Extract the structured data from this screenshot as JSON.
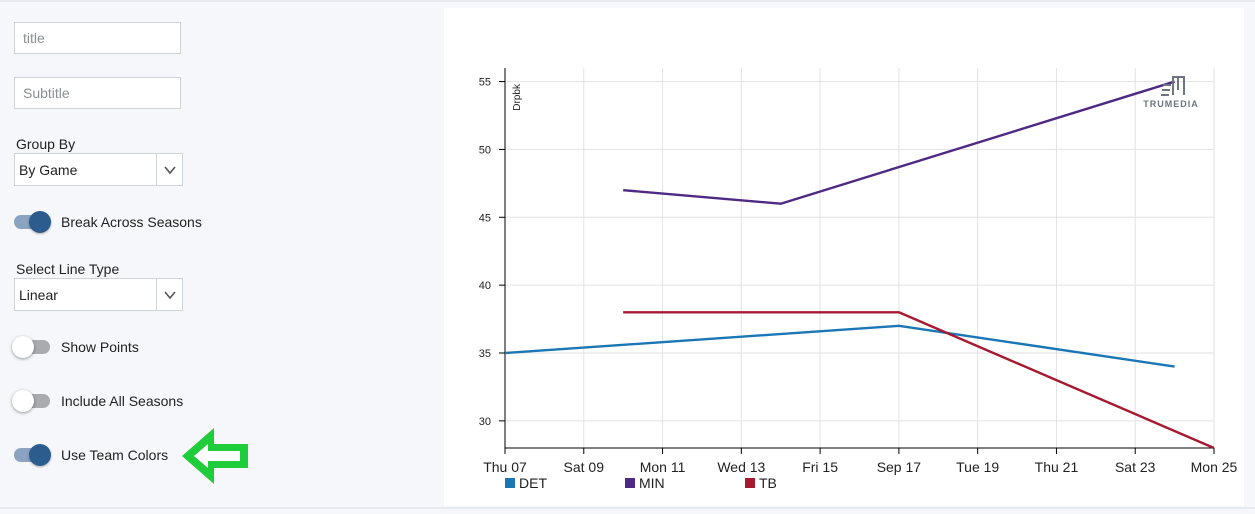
{
  "controls": {
    "title_placeholder": "title",
    "subtitle_placeholder": "Subtitle",
    "group_by_label": "Group By",
    "group_by_value": "By Game",
    "break_across_seasons_label": "Break Across Seasons",
    "break_across_seasons_on": true,
    "line_type_label": "Select Line Type",
    "line_type_value": "Linear",
    "show_points_label": "Show Points",
    "show_points_on": false,
    "include_all_seasons_label": "Include All Seasons",
    "include_all_seasons_on": false,
    "use_team_colors_label": "Use Team Colors",
    "use_team_colors_on": true,
    "arrow_color": "#1fcc3a",
    "toggle_on_color": "#2c5b8e"
  },
  "brand": {
    "name": "TRUMEDIA"
  },
  "chart_data": {
    "type": "line",
    "ylabel": "Drpbk",
    "ylim": [
      28,
      56
    ],
    "yticks": [
      30,
      35,
      40,
      45,
      50,
      55
    ],
    "xlim": [
      0,
      18
    ],
    "x_ticks": [
      {
        "x": 0,
        "label": "Thu 07"
      },
      {
        "x": 2,
        "label": "Sat 09"
      },
      {
        "x": 4,
        "label": "Mon 11"
      },
      {
        "x": 6,
        "label": "Wed 13"
      },
      {
        "x": 8,
        "label": "Fri 15"
      },
      {
        "x": 10,
        "label": "Sep 17"
      },
      {
        "x": 12,
        "label": "Tue 19"
      },
      {
        "x": 14,
        "label": "Thu 21"
      },
      {
        "x": 16,
        "label": "Sat 23"
      },
      {
        "x": 18,
        "label": "Mon 25"
      }
    ],
    "series": [
      {
        "name": "DET",
        "color": "#1a76b5",
        "points": [
          [
            0,
            35
          ],
          [
            10,
            37
          ],
          [
            17,
            34
          ]
        ]
      },
      {
        "name": "MIN",
        "color": "#4e2a84",
        "points": [
          [
            3,
            47
          ],
          [
            7,
            46
          ],
          [
            17,
            55
          ]
        ]
      },
      {
        "name": "TB",
        "color": "#a71930",
        "points": [
          [
            3,
            38
          ],
          [
            10,
            38
          ],
          [
            18,
            28
          ]
        ]
      }
    ]
  }
}
